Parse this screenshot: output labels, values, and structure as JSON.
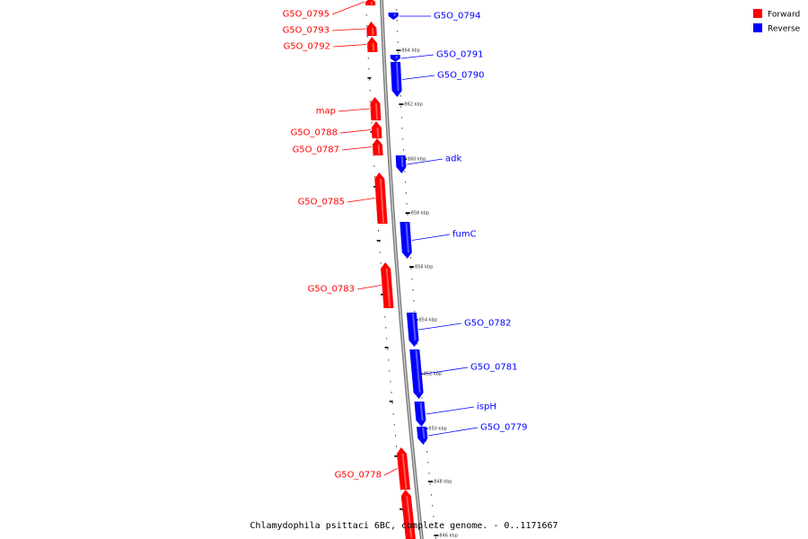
{
  "caption": "Chlamydophila psittaci 6BC, complete genome. - 0..1171667",
  "legend": [
    {
      "label": "Forward",
      "color": "#ff0000"
    },
    {
      "label": "Reverse",
      "color": "#0000ff"
    }
  ],
  "ticks": [
    "864 kbp",
    "862 kbp",
    "860 kbp",
    "858 kbp",
    "856 kbp",
    "854 kbp",
    "852 kbp",
    "850 kbp",
    "848 kbp",
    "846 kbp"
  ],
  "genes": [
    {
      "name": "G5O_0795",
      "strand": "forward"
    },
    {
      "name": "G5O_0794",
      "strand": "reverse"
    },
    {
      "name": "G5O_0793",
      "strand": "forward"
    },
    {
      "name": "G5O_0792",
      "strand": "forward"
    },
    {
      "name": "G5O_0791",
      "strand": "reverse"
    },
    {
      "name": "G5O_0790",
      "strand": "reverse"
    },
    {
      "name": "map",
      "strand": "forward"
    },
    {
      "name": "G5O_0788",
      "strand": "forward"
    },
    {
      "name": "G5O_0787",
      "strand": "forward"
    },
    {
      "name": "adk",
      "strand": "reverse"
    },
    {
      "name": "G5O_0785",
      "strand": "forward"
    },
    {
      "name": "fumC",
      "strand": "reverse"
    },
    {
      "name": "G5O_0783",
      "strand": "forward"
    },
    {
      "name": "G5O_0782",
      "strand": "reverse"
    },
    {
      "name": "G5O_0781",
      "strand": "reverse"
    },
    {
      "name": "ispH",
      "strand": "reverse"
    },
    {
      "name": "G5O_0779",
      "strand": "reverse"
    },
    {
      "name": "G5O_0778",
      "strand": "forward"
    },
    {
      "name": "",
      "strand": "forward"
    }
  ]
}
